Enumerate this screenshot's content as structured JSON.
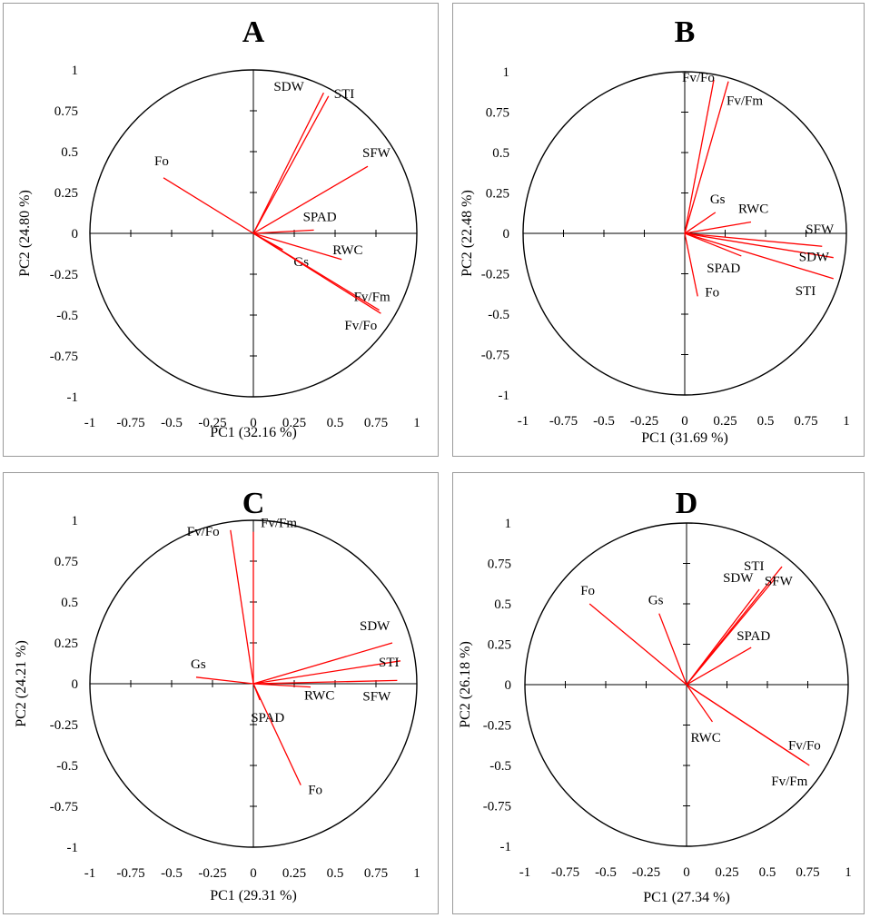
{
  "chart_data": [
    {
      "type": "scatter",
      "panel": "A",
      "title": "A",
      "xlabel": "PC1 (32.16  %)",
      "ylabel": "PC2 (24.80  %)",
      "xlim": [
        -1,
        1
      ],
      "ylim": [
        -1,
        1
      ],
      "xticks": [
        "-1",
        "-0.75",
        "-0.5",
        "-0.25",
        "0",
        "0.25",
        "0.5",
        "0.75",
        "1"
      ],
      "yticks": [
        "1",
        "0.75",
        "0.5",
        "0.25",
        "0",
        "-0.25",
        "-0.5",
        "-0.75",
        "-1"
      ],
      "grid": false,
      "line_color": "#ff0000",
      "vectors": [
        {
          "name": "SDW",
          "x": 0.43,
          "y": 0.86
        },
        {
          "name": "STI",
          "x": 0.46,
          "y": 0.84
        },
        {
          "name": "SFW",
          "x": 0.7,
          "y": 0.41
        },
        {
          "name": "Fo",
          "x": -0.55,
          "y": 0.34
        },
        {
          "name": "SPAD",
          "x": 0.37,
          "y": 0.02
        },
        {
          "name": "RWC",
          "x": 0.54,
          "y": -0.16
        },
        {
          "name": "Gs",
          "x": 0.18,
          "y": -0.1
        },
        {
          "name": "Fv/Fm",
          "x": 0.77,
          "y": -0.47
        },
        {
          "name": "Fv/Fo",
          "x": 0.78,
          "y": -0.49
        }
      ]
    },
    {
      "type": "scatter",
      "panel": "B",
      "title": "B",
      "xlabel": "PC1 (31.69  %)",
      "ylabel": "PC2 (22.48  %)",
      "xlim": [
        -1,
        1
      ],
      "ylim": [
        -1,
        1
      ],
      "xticks": [
        "-1",
        "-0.75",
        "-0.5",
        "-0.25",
        "0",
        "0.25",
        "0.5",
        "0.75",
        "1"
      ],
      "yticks": [
        "1",
        "0.75",
        "0.5",
        "0.25",
        "0",
        "-0.25",
        "-0.5",
        "-0.75",
        "-1"
      ],
      "grid": false,
      "line_color": "#ff0000",
      "vectors": [
        {
          "name": "Fv/Fo",
          "x": 0.18,
          "y": 0.95
        },
        {
          "name": "Fv/Fm",
          "x": 0.27,
          "y": 0.94
        },
        {
          "name": "Gs",
          "x": 0.19,
          "y": 0.13
        },
        {
          "name": "RWC",
          "x": 0.41,
          "y": 0.07
        },
        {
          "name": "SFW",
          "x": 0.85,
          "y": -0.08
        },
        {
          "name": "SDW",
          "x": 0.92,
          "y": -0.15
        },
        {
          "name": "STI",
          "x": 0.92,
          "y": -0.28
        },
        {
          "name": "SPAD",
          "x": 0.35,
          "y": -0.14
        },
        {
          "name": "Fo",
          "x": 0.08,
          "y": -0.39
        }
      ]
    },
    {
      "type": "scatter",
      "panel": "C",
      "title": "C",
      "xlabel": "PC1 (29.31  %)",
      "ylabel": "PC2 (24.21  %)",
      "xlim": [
        -1,
        1
      ],
      "ylim": [
        -1,
        1
      ],
      "xticks": [
        "-1",
        "-0.75",
        "-0.5",
        "-0.25",
        "0",
        "0.25",
        "0.5",
        "0.75",
        "1"
      ],
      "yticks": [
        "1",
        "0.75",
        "0.5",
        "0.25",
        "0",
        "-0.25",
        "-0.5",
        "-0.75",
        "-1"
      ],
      "grid": false,
      "line_color": "#ff0000",
      "vectors": [
        {
          "name": "Fv/Fo",
          "x": -0.14,
          "y": 0.94
        },
        {
          "name": "Fv/Fm",
          "x": 0.0,
          "y": 0.93
        },
        {
          "name": "SDW",
          "x": 0.85,
          "y": 0.25
        },
        {
          "name": "STI",
          "x": 0.9,
          "y": 0.14
        },
        {
          "name": "SFW",
          "x": 0.88,
          "y": 0.02
        },
        {
          "name": "RWC",
          "x": 0.35,
          "y": -0.02
        },
        {
          "name": "Gs",
          "x": -0.35,
          "y": 0.04
        },
        {
          "name": "SPAD",
          "x": 0.04,
          "y": -0.1
        },
        {
          "name": "Fo",
          "x": 0.29,
          "y": -0.62
        }
      ]
    },
    {
      "type": "scatter",
      "panel": "D",
      "title": "D",
      "xlabel": "PC1 (27.34  %)",
      "ylabel": "PC2 (26.18  %)",
      "xlim": [
        -1,
        1
      ],
      "ylim": [
        -1,
        1
      ],
      "xticks": [
        "-1",
        "-0.75",
        "-0.5",
        "-0.25",
        "0",
        "0.25",
        "0.5",
        "0.75",
        "1"
      ],
      "yticks": [
        "1",
        "0.75",
        "0.5",
        "0.25",
        "0",
        "-0.25",
        "-0.5",
        "-0.75",
        "-1"
      ],
      "grid": false,
      "line_color": "#ff0000",
      "vectors": [
        {
          "name": "STI",
          "x": 0.59,
          "y": 0.73
        },
        {
          "name": "SDW",
          "x": 0.45,
          "y": 0.59
        },
        {
          "name": "SFW",
          "x": 0.55,
          "y": 0.66
        },
        {
          "name": "Fo",
          "x": -0.6,
          "y": 0.5
        },
        {
          "name": "Gs",
          "x": -0.17,
          "y": 0.44
        },
        {
          "name": "SPAD",
          "x": 0.4,
          "y": 0.23
        },
        {
          "name": "RWC",
          "x": 0.16,
          "y": -0.23
        },
        {
          "name": "Fv/Fo",
          "x": 0.73,
          "y": -0.48
        },
        {
          "name": "Fv/Fm",
          "x": 0.76,
          "y": -0.5
        }
      ]
    }
  ]
}
